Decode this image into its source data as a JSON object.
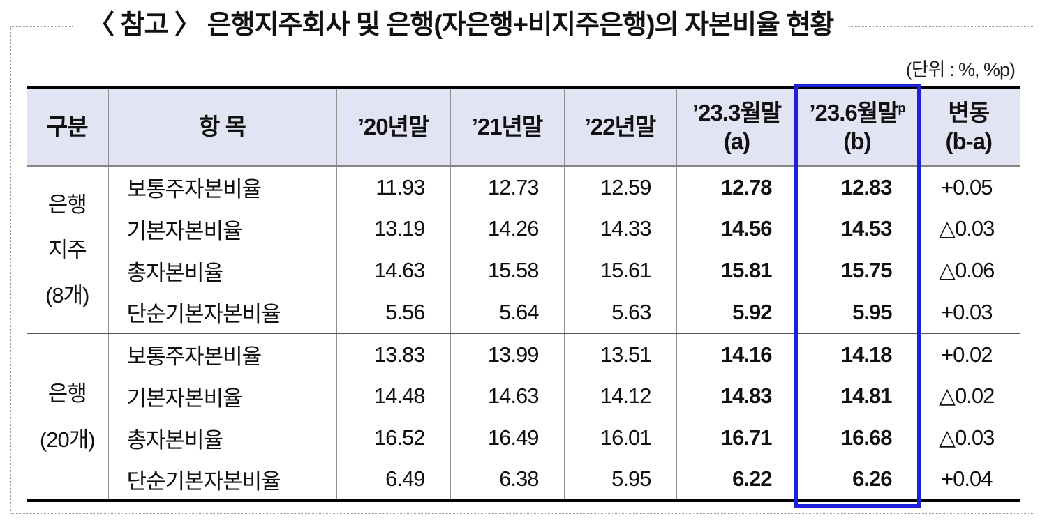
{
  "title": "〈 참고 〉 은행지주회사 및 은행(자은행+비지주은행)의 자본비율 현황",
  "unit_note": "(단위 : %, %p)",
  "colors": {
    "header_bg": "#e2e4f3",
    "highlight_border": "#1c22d9",
    "table_frame": "#000000"
  },
  "table": {
    "headers": {
      "category": "구분",
      "item": "항 목",
      "y2020": "’20년말",
      "y2021": "’21년말",
      "y2022": "’22년말",
      "a_line1": "’23.3월말",
      "a_line2": "(a)",
      "b_line1": "’23.6월말",
      "b_sup": "p",
      "b_line2": "(b)",
      "chg_line1": "변동",
      "chg_line2": "(b-a)"
    },
    "groups": [
      {
        "name_lines": [
          "은행",
          "지주",
          "(8개)"
        ],
        "rows": [
          {
            "item": "보통주자본비율",
            "y2020": "11.93",
            "y2021": "12.73",
            "y2022": "12.59",
            "a": "12.78",
            "b": "12.83",
            "change": "+0.05"
          },
          {
            "item": "기본자본비율",
            "y2020": "13.19",
            "y2021": "14.26",
            "y2022": "14.33",
            "a": "14.56",
            "b": "14.53",
            "change": "△0.03"
          },
          {
            "item": "총자본비율",
            "y2020": "14.63",
            "y2021": "15.58",
            "y2022": "15.61",
            "a": "15.81",
            "b": "15.75",
            "change": "△0.06"
          },
          {
            "item": "단순기본자본비율",
            "y2020": "5.56",
            "y2021": "5.64",
            "y2022": "5.63",
            "a": "5.92",
            "b": "5.95",
            "change": "+0.03"
          }
        ]
      },
      {
        "name_lines": [
          "은행",
          "(20개)"
        ],
        "rows": [
          {
            "item": "보통주자본비율",
            "y2020": "13.83",
            "y2021": "13.99",
            "y2022": "13.51",
            "a": "14.16",
            "b": "14.18",
            "change": "+0.02"
          },
          {
            "item": "기본자본비율",
            "y2020": "14.48",
            "y2021": "14.63",
            "y2022": "14.12",
            "a": "14.83",
            "b": "14.81",
            "change": "△0.02"
          },
          {
            "item": "총자본비율",
            "y2020": "16.52",
            "y2021": "16.49",
            "y2022": "16.01",
            "a": "16.71",
            "b": "16.68",
            "change": "△0.03"
          },
          {
            "item": "단순기본자본비율",
            "y2020": "6.49",
            "y2021": "6.38",
            "y2022": "5.95",
            "a": "6.22",
            "b": "6.26",
            "change": "+0.04"
          }
        ]
      }
    ]
  }
}
